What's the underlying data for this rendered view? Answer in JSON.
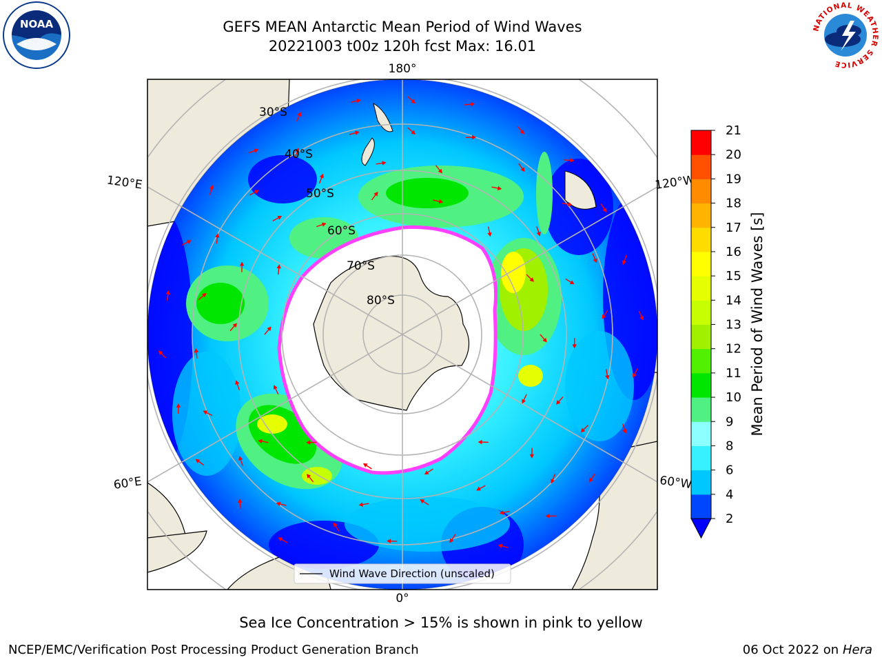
{
  "title": {
    "line1": "GEFS MEAN Antarctic Mean Period of Wind Waves",
    "line2": "20221003 t00z 120h fcst   Max: 16.01"
  },
  "logos": {
    "noaa_text": "NOAA",
    "nws_ring_text": "NATIONAL WEATHER SERVICE"
  },
  "map": {
    "longitude_labels": [
      "180°",
      "120°E",
      "120°W",
      "60°E",
      "60°W",
      "0°"
    ],
    "latitude_labels": [
      "30°S",
      "40°S",
      "50°S",
      "60°S",
      "70°S",
      "80°S"
    ],
    "legend_label": "Wind Wave Direction (unscaled)"
  },
  "colorbar": {
    "label": "Mean Period of Wind Waves [s]",
    "ticks": [
      "2",
      "4",
      "6",
      "8",
      "9",
      "10",
      "11",
      "12",
      "13",
      "14",
      "15",
      "16",
      "17",
      "18",
      "19",
      "20",
      "21"
    ],
    "colors": [
      "#0046ff",
      "#00c8ff",
      "#36f0ff",
      "#8cffff",
      "#50f082",
      "#00e600",
      "#50f000",
      "#a0f000",
      "#c8ff00",
      "#e6ff00",
      "#ffff00",
      "#ffdc00",
      "#ffb400",
      "#ff8c00",
      "#ff5000",
      "#ff0000"
    ],
    "under_color": "#0000ff"
  },
  "sea_ice_caption": "Sea Ice Concentration > 15% is shown in pink to yellow",
  "footer": {
    "left": "NCEP/EMC/Verification Post Processing Product Generation Branch",
    "right_date": "06 Oct 2022 on ",
    "right_machine": "Hera"
  },
  "colors": {
    "land": "#efebdc",
    "ocean_base": "#36f0ff",
    "ice_edge": "#ff40ff",
    "arrow": "#ff0000",
    "grid": "#b4b4b4"
  }
}
